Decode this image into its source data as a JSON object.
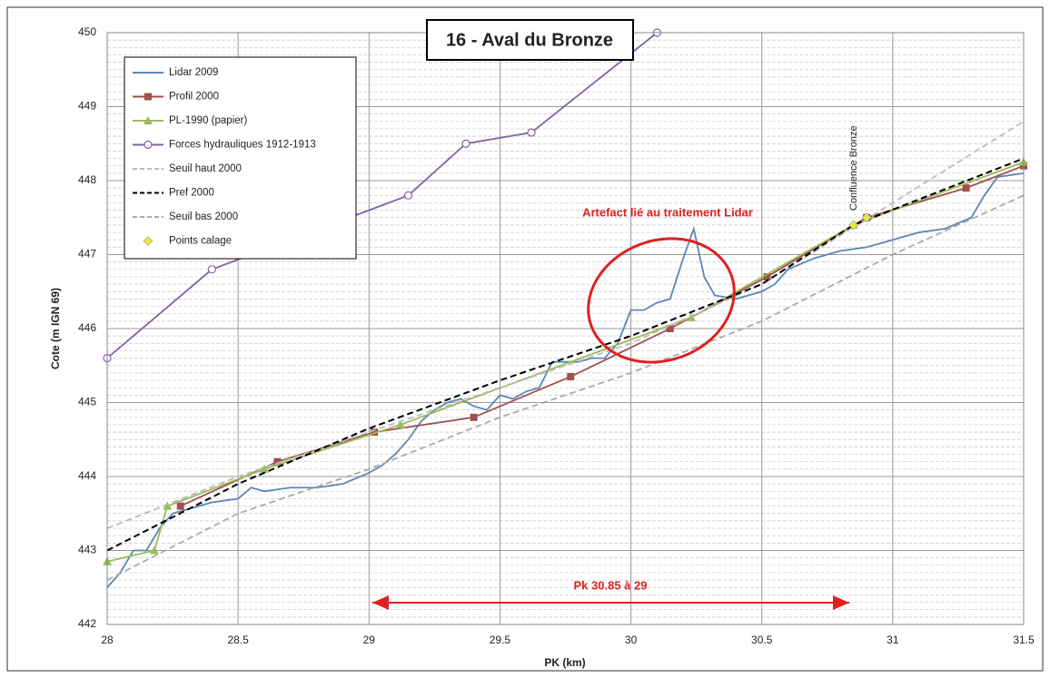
{
  "chart_data": {
    "type": "line",
    "title": "16 - Aval du Bronze",
    "x_label": "PK (km)",
    "y_label": "Cote (m IGN 69)",
    "annotations": [
      "Artefact lié au traitement Lidar",
      "Pk 30.85 à 29",
      "Confluence Bronze"
    ],
    "xlim": [
      28,
      31.5
    ],
    "ylim": [
      442,
      450
    ],
    "xticks": [
      28,
      28.5,
      29,
      29.5,
      30,
      30.5,
      31,
      31.5
    ],
    "yticks": [
      442,
      443,
      444,
      445,
      446,
      447,
      448,
      449,
      450
    ],
    "grid": true,
    "legend": "upper left",
    "series": [
      {
        "name": "Lidar 2009",
        "color": "#5b87b5",
        "marker": "none",
        "dash": "solid",
        "x": [
          28.0,
          28.05,
          28.1,
          28.15,
          28.2,
          28.25,
          28.3,
          28.35,
          28.4,
          28.5,
          28.55,
          28.6,
          28.7,
          28.8,
          28.9,
          29.0,
          29.05,
          29.1,
          29.15,
          29.2,
          29.25,
          29.3,
          29.35,
          29.4,
          29.45,
          29.5,
          29.55,
          29.6,
          29.65,
          29.7,
          29.75,
          29.8,
          29.85,
          29.9,
          29.95,
          30.0,
          30.05,
          30.1,
          30.15,
          30.2,
          30.24,
          30.28,
          30.32,
          30.4,
          30.5,
          30.55,
          30.6,
          30.7,
          30.8,
          30.9,
          31.0,
          31.1,
          31.2,
          31.3,
          31.35,
          31.4,
          31.5
        ],
        "values": [
          442.5,
          442.7,
          443.0,
          443.0,
          443.3,
          443.5,
          443.55,
          443.6,
          443.65,
          443.7,
          443.85,
          443.8,
          443.85,
          443.85,
          443.9,
          444.05,
          444.15,
          444.3,
          444.5,
          444.75,
          444.9,
          445.0,
          445.05,
          444.95,
          444.9,
          445.1,
          445.05,
          445.15,
          445.2,
          445.55,
          445.55,
          445.55,
          445.6,
          445.6,
          445.8,
          446.25,
          446.25,
          446.35,
          446.4,
          446.95,
          447.35,
          446.7,
          446.45,
          446.4,
          446.5,
          446.6,
          446.8,
          446.95,
          447.05,
          447.1,
          447.2,
          447.3,
          447.35,
          447.5,
          447.8,
          448.05,
          448.1
        ]
      },
      {
        "name": "Profil 2000",
        "color": "#a0504d",
        "marker": "square",
        "dash": "solid",
        "x": [
          28.28,
          28.65,
          29.02,
          29.4,
          29.77,
          30.15,
          30.52,
          30.9,
          31.28,
          31.5
        ],
        "values": [
          443.6,
          444.2,
          444.6,
          444.8,
          445.35,
          446.0,
          446.7,
          447.5,
          447.9,
          448.2
        ]
      },
      {
        "name": "PL-1990 (papier)",
        "color": "#9bbb59",
        "marker": "triangle",
        "dash": "solid",
        "x": [
          28.0,
          28.18,
          28.23,
          28.6,
          29.12,
          30.23,
          30.85,
          31.5
        ],
        "values": [
          442.85,
          443.0,
          443.6,
          444.1,
          444.7,
          446.15,
          447.4,
          448.25
        ]
      },
      {
        "name": "Forces hydrauliques 1912-1913",
        "color": "#8064a2",
        "marker": "circle",
        "dash": "solid",
        "x": [
          28.0,
          28.4,
          29.15,
          29.37,
          29.62,
          30.1
        ],
        "values": [
          445.6,
          446.8,
          447.8,
          448.5,
          448.65,
          450.0
        ]
      },
      {
        "name": "Seuil haut 2000",
        "color": "#bbbbbb",
        "marker": "none",
        "dash": "dashed",
        "x": [
          28.0,
          28.5,
          29.0,
          29.5,
          30.0,
          30.5,
          31.0,
          31.5
        ],
        "values": [
          443.3,
          444.0,
          444.6,
          445.2,
          445.8,
          446.6,
          447.7,
          448.8
        ]
      },
      {
        "name": "Pref 2000",
        "color": "#000000",
        "marker": "none",
        "dash": "dashed",
        "x": [
          28.0,
          28.5,
          29.0,
          29.5,
          30.0,
          30.5,
          30.85,
          31.5
        ],
        "values": [
          443.0,
          443.9,
          444.65,
          445.3,
          445.9,
          446.6,
          447.4,
          448.3
        ]
      },
      {
        "name": "Seuil bas 2000",
        "color": "#aaaaaa",
        "marker": "none",
        "dash": "dashed",
        "x": [
          28.0,
          28.5,
          29.0,
          29.5,
          30.0,
          30.5,
          31.0,
          31.5
        ],
        "values": [
          442.6,
          443.5,
          444.1,
          444.8,
          445.4,
          446.1,
          447.0,
          447.8
        ]
      },
      {
        "name": "Points calage",
        "color": "#e8e840",
        "marker": "diamond",
        "dash": "none",
        "x": [
          30.85,
          30.9
        ],
        "values": [
          447.4,
          447.5
        ]
      }
    ]
  }
}
